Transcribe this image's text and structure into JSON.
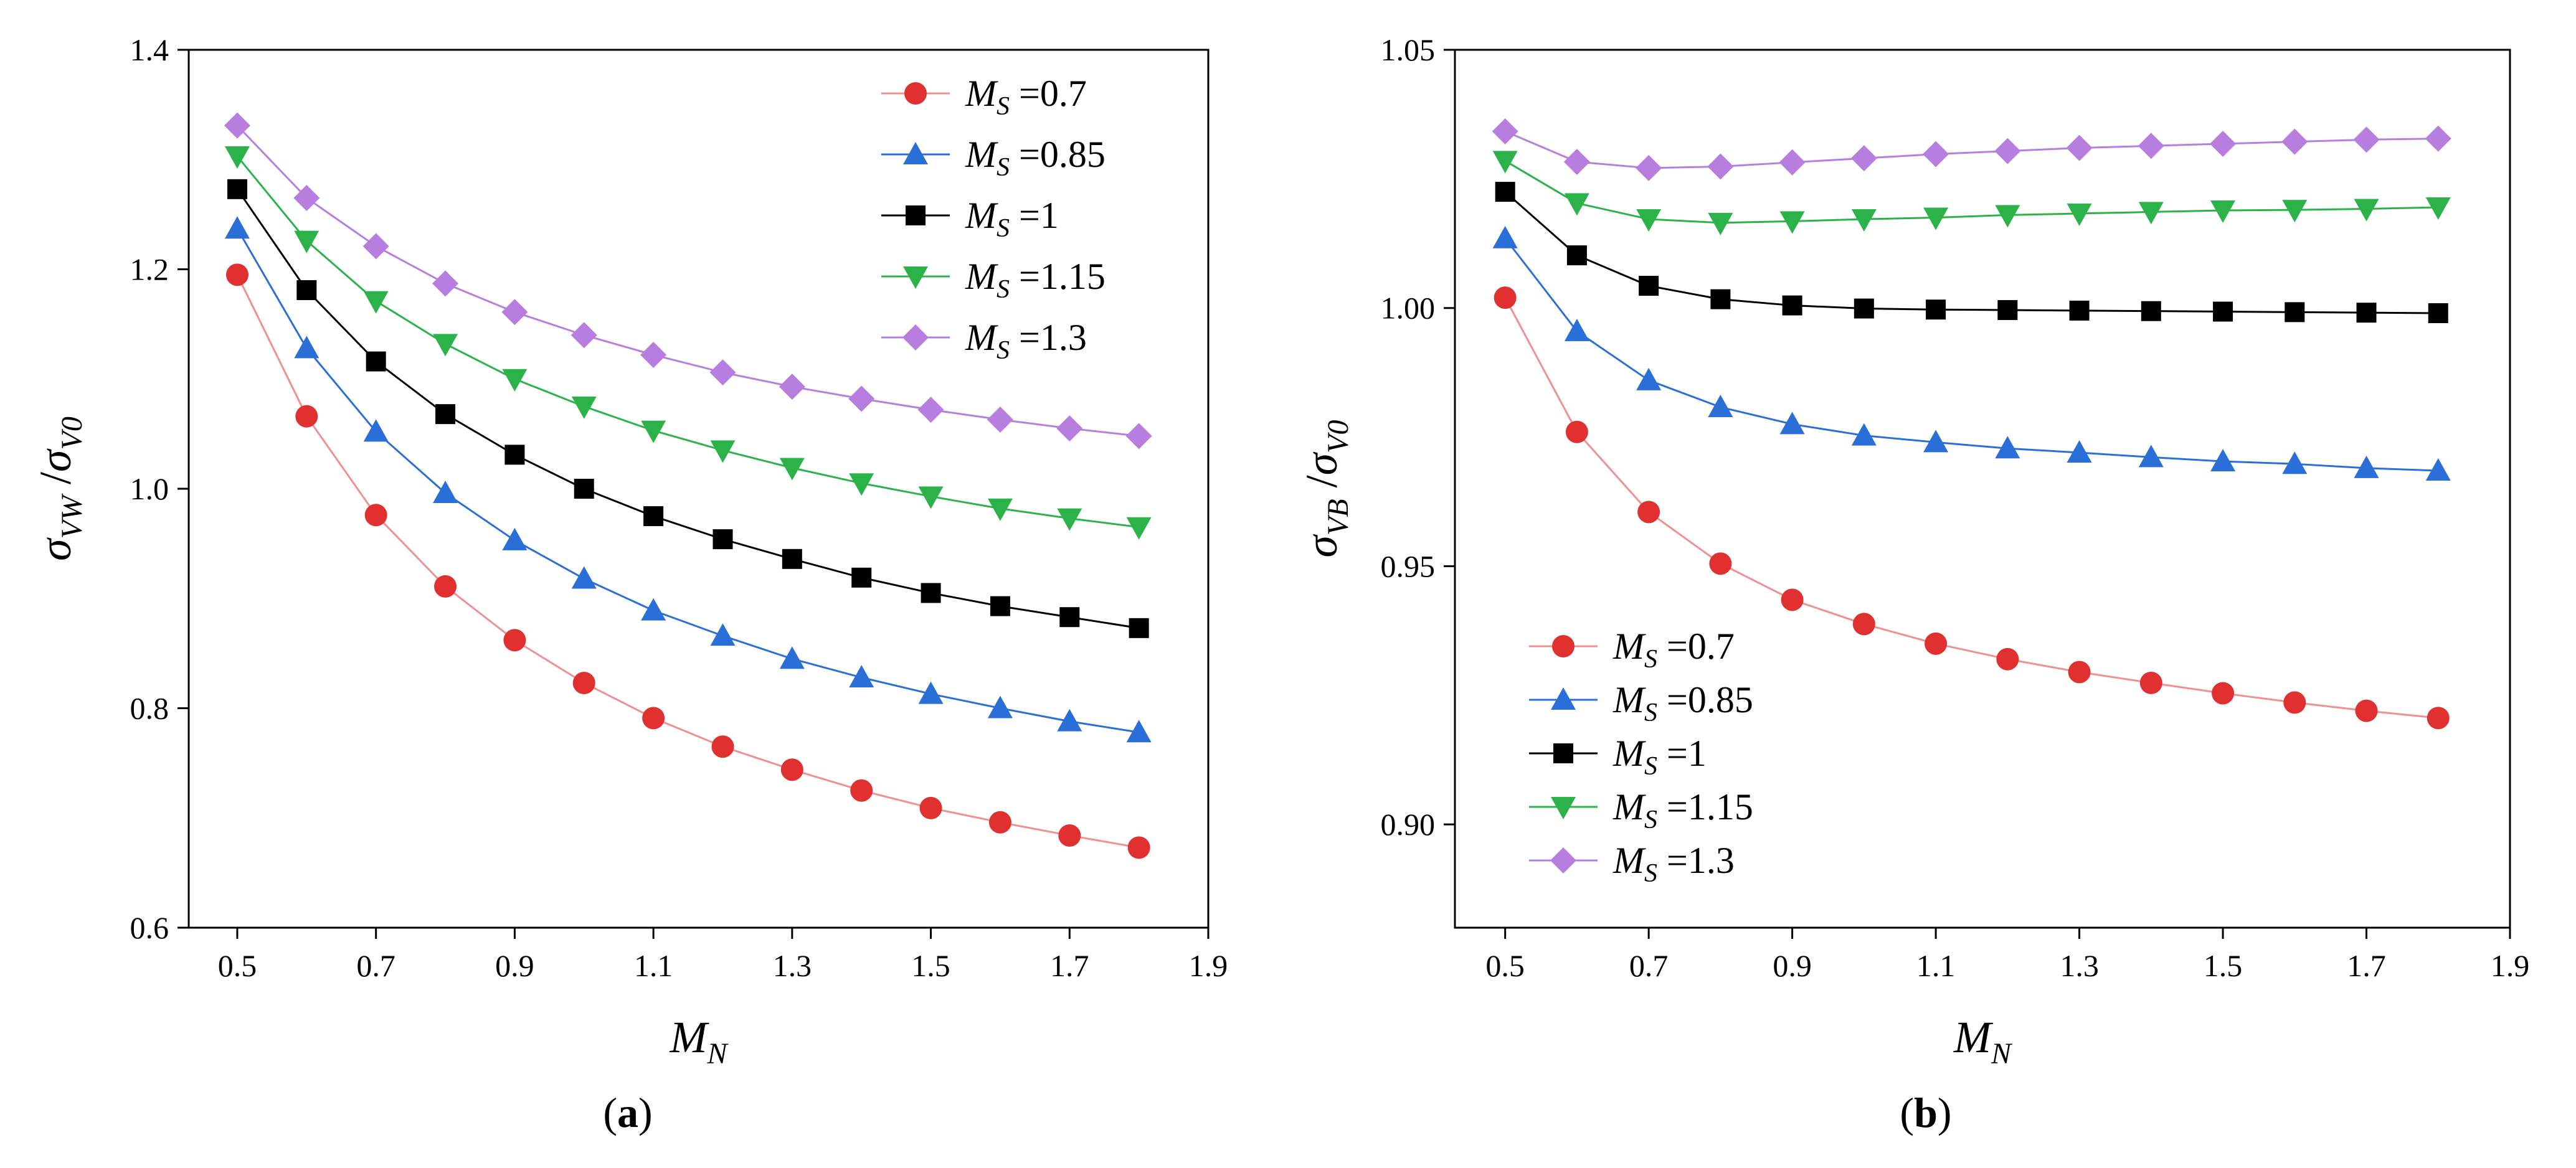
{
  "chart_data": [
    {
      "id": "a",
      "type": "line",
      "caption": {
        "open": "(",
        "letter": "a",
        "close": ")"
      },
      "xlabel": {
        "main": "M",
        "sub": "N"
      },
      "ylabel": {
        "sigma1": "σ",
        "sub1": "VW",
        "slash": " /",
        "sigma2": "σ",
        "sub2": "V0"
      },
      "xlim": [
        0.43,
        1.9
      ],
      "ylim": [
        0.6,
        1.4
      ],
      "xticks": [
        0.5,
        0.7,
        0.9,
        1.1,
        1.3,
        1.5,
        1.7,
        1.9
      ],
      "xtick_labels": [
        "0.5",
        "0.7",
        "0.9",
        "1.1",
        "1.3",
        "1.5",
        "1.7",
        "1.9"
      ],
      "yticks": [
        0.6,
        0.8,
        1.0,
        1.2,
        1.4
      ],
      "ytick_labels": [
        "0.6",
        "0.8",
        "1.0",
        "1.2",
        "1.4"
      ],
      "legend_position": "top-right",
      "x": [
        0.5,
        0.6,
        0.7,
        0.8,
        0.9,
        1.0,
        1.1,
        1.2,
        1.3,
        1.4,
        1.5,
        1.6,
        1.7,
        1.8
      ],
      "series": [
        {
          "name": "M_S=0.7",
          "label_main": "M",
          "label_sub": "S",
          "label_value": " =0.7",
          "color": "#e03030",
          "line_color": "#f09090",
          "marker": "circle",
          "values": [
            1.195,
            1.066,
            0.976,
            0.911,
            0.862,
            0.823,
            0.791,
            0.765,
            0.744,
            0.725,
            0.709,
            0.696,
            0.684,
            0.673
          ]
        },
        {
          "name": "M_S=0.85",
          "label_main": "M",
          "label_sub": "S",
          "label_value": " =0.85",
          "color": "#2a6fd8",
          "line_color": "#2a6fd8",
          "marker": "triangle-up",
          "values": [
            1.237,
            1.128,
            1.052,
            0.996,
            0.953,
            0.918,
            0.889,
            0.866,
            0.845,
            0.828,
            0.813,
            0.8,
            0.788,
            0.778
          ]
        },
        {
          "name": "M_S=1",
          "label_main": "M",
          "label_sub": "S",
          "label_value": " =1",
          "color": "#000000",
          "line_color": "#000000",
          "marker": "square",
          "values": [
            1.273,
            1.181,
            1.116,
            1.068,
            1.031,
            1.0,
            0.975,
            0.954,
            0.936,
            0.919,
            0.905,
            0.893,
            0.883,
            0.873
          ]
        },
        {
          "name": "M_S=1.15",
          "label_main": "M",
          "label_sub": "S",
          "label_value": " =1.15",
          "color": "#2bb34a",
          "line_color": "#2bb34a",
          "marker": "triangle-down",
          "values": [
            1.303,
            1.226,
            1.171,
            1.132,
            1.1,
            1.075,
            1.053,
            1.035,
            1.019,
            1.005,
            0.993,
            0.982,
            0.973,
            0.965
          ]
        },
        {
          "name": "M_S=1.3",
          "label_main": "M",
          "label_sub": "S",
          "label_value": " =1.3",
          "color": "#b77ee0",
          "line_color": "#b77ee0",
          "marker": "diamond",
          "values": [
            1.331,
            1.265,
            1.221,
            1.187,
            1.161,
            1.14,
            1.122,
            1.106,
            1.093,
            1.082,
            1.072,
            1.063,
            1.055,
            1.048
          ]
        }
      ]
    },
    {
      "id": "b",
      "type": "line",
      "caption": {
        "open": "(",
        "letter": "b",
        "close": ")"
      },
      "xlabel": {
        "main": "M",
        "sub": "N"
      },
      "ylabel": {
        "sigma1": "σ",
        "sub1": "VB",
        "slash": " /",
        "sigma2": "σ",
        "sub2": "V0"
      },
      "xlim": [
        0.43,
        1.9
      ],
      "ylim": [
        0.88,
        1.05
      ],
      "xticks": [
        0.5,
        0.7,
        0.9,
        1.1,
        1.3,
        1.5,
        1.7,
        1.9
      ],
      "xtick_labels": [
        "0.5",
        "0.7",
        "0.9",
        "1.1",
        "1.3",
        "1.5",
        "1.7",
        "1.9"
      ],
      "yticks": [
        0.9,
        0.95,
        1.0,
        1.05
      ],
      "ytick_labels": [
        "0.90",
        "0.95",
        "1.00",
        "1.05"
      ],
      "legend_position": "bottom-left",
      "x": [
        0.5,
        0.6,
        0.7,
        0.8,
        0.9,
        1.0,
        1.1,
        1.2,
        1.3,
        1.4,
        1.5,
        1.6,
        1.7,
        1.8
      ],
      "series": [
        {
          "name": "M_S=0.7",
          "label_main": "M",
          "label_sub": "S",
          "label_value": " =0.7",
          "color": "#e03030",
          "line_color": "#f09090",
          "marker": "circle",
          "values": [
            1.002,
            0.976,
            0.9605,
            0.9505,
            0.9435,
            0.9388,
            0.935,
            0.932,
            0.9295,
            0.9274,
            0.9254,
            0.9236,
            0.922,
            0.9206
          ]
        },
        {
          "name": "M_S=0.85",
          "label_main": "M",
          "label_sub": "S",
          "label_value": " =0.85",
          "color": "#2a6fd8",
          "line_color": "#2a6fd8",
          "marker": "triangle-up",
          "values": [
            1.0135,
            0.9955,
            0.986,
            0.9808,
            0.9775,
            0.9753,
            0.974,
            0.9728,
            0.972,
            0.9711,
            0.9703,
            0.9698,
            0.969,
            0.9685
          ]
        },
        {
          "name": "M_S=1",
          "label_main": "M",
          "label_sub": "S",
          "label_value": " =1",
          "color": "#000000",
          "line_color": "#000000",
          "marker": "square",
          "values": [
            1.0225,
            1.0102,
            1.0043,
            1.0017,
            1.0005,
            0.9999,
            0.9997,
            0.9996,
            0.9995,
            0.9994,
            0.9993,
            0.9992,
            0.9991,
            0.999
          ]
        },
        {
          "name": "M_S=1.15",
          "label_main": "M",
          "label_sub": "S",
          "label_value": " =1.15",
          "color": "#2bb34a",
          "line_color": "#2bb34a",
          "marker": "triangle-down",
          "values": [
            1.0285,
            1.0203,
            1.0172,
            1.0165,
            1.0168,
            1.0172,
            1.0175,
            1.018,
            1.0183,
            1.0186,
            1.0189,
            1.019,
            1.0192,
            1.0195
          ]
        },
        {
          "name": "M_S=1.3",
          "label_main": "M",
          "label_sub": "S",
          "label_value": " =1.3",
          "color": "#b77ee0",
          "line_color": "#b77ee0",
          "marker": "diamond",
          "values": [
            1.0342,
            1.0283,
            1.0271,
            1.0274,
            1.0282,
            1.029,
            1.0298,
            1.0304,
            1.031,
            1.0314,
            1.0318,
            1.0322,
            1.0326,
            1.0328
          ]
        }
      ]
    }
  ]
}
